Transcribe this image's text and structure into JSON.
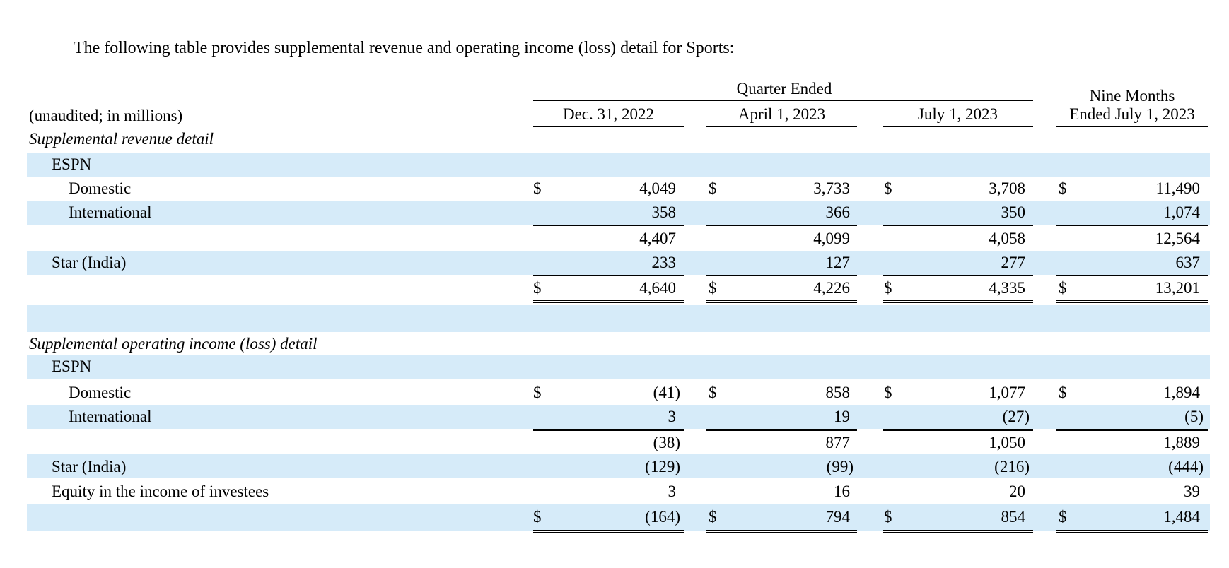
{
  "intro": "The following table provides supplemental revenue and operating income (loss) detail for Sports:",
  "header": {
    "units": "(unaudited; in millions)",
    "group": "Quarter Ended",
    "col1": "Dec. 31, 2022",
    "col2": "April 1, 2023",
    "col3": "July 1, 2023",
    "col4_line1": "Nine Months",
    "col4_line2": "Ended July 1, 2023"
  },
  "currency": "$",
  "revenue": {
    "section": "Supplemental revenue detail",
    "espn": "ESPN",
    "domestic": {
      "label": "Domestic",
      "v": [
        "4,049",
        "3,733",
        "3,708",
        "11,490"
      ]
    },
    "international": {
      "label": "International",
      "v": [
        "358",
        "366",
        "350",
        "1,074"
      ]
    },
    "espn_total": {
      "v": [
        "4,407",
        "4,099",
        "4,058",
        "12,564"
      ]
    },
    "star": {
      "label": "Star (India)",
      "v": [
        "233",
        "127",
        "277",
        "637"
      ]
    },
    "total": {
      "v": [
        "4,640",
        "4,226",
        "4,335",
        "13,201"
      ]
    }
  },
  "oi": {
    "section": "Supplemental operating income (loss) detail",
    "espn": "ESPN",
    "domestic": {
      "label": "Domestic",
      "v": [
        "(41)",
        "858",
        "1,077",
        "1,894"
      ]
    },
    "international": {
      "label": "International",
      "v": [
        "3",
        "19",
        "(27)",
        "(5)"
      ]
    },
    "espn_total": {
      "v": [
        "(38)",
        "877",
        "1,050",
        "1,889"
      ]
    },
    "star": {
      "label": "Star (India)",
      "v": [
        "(129)",
        "(99)",
        "(216)",
        "(444)"
      ]
    },
    "equity": {
      "label": "Equity in the income of investees",
      "v": [
        "3",
        "16",
        "20",
        "39"
      ]
    },
    "total": {
      "v": [
        "(164)",
        "794",
        "854",
        "1,484"
      ]
    }
  }
}
